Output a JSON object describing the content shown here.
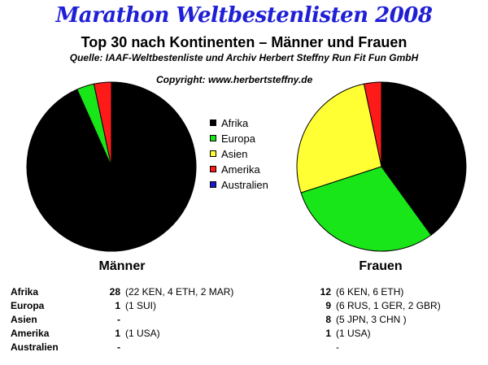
{
  "title": "Marathon Weltbestenlisten 2008",
  "subtitle": "Top 30 nach Kontinenten – Männer und Frauen",
  "source": "Quelle: IAAF-Weltbestenliste und Archiv Herbert Steffny Run Fit Fun GmbH",
  "copyright": "Copyright: www.herbertsteffny.de",
  "colors": {
    "Afrika": "#000000",
    "Europa": "#19e619",
    "Asien": "#ffff33",
    "Amerika": "#ff1a1a",
    "Australien": "#1a1acc"
  },
  "chart_data": [
    {
      "type": "pie",
      "title": "Männer",
      "categories": [
        "Afrika",
        "Europa",
        "Asien",
        "Amerika",
        "Australien"
      ],
      "values": [
        28,
        1,
        0,
        1,
        0
      ],
      "legend": "center"
    },
    {
      "type": "pie",
      "title": "Frauen",
      "categories": [
        "Afrika",
        "Europa",
        "Asien",
        "Amerika",
        "Australien"
      ],
      "values": [
        12,
        9,
        8,
        1,
        0
      ],
      "legend": "center"
    }
  ],
  "table": {
    "rows": [
      {
        "name": "Afrika",
        "m_count": "28",
        "m_detail": "(22 KEN, 4 ETH, 2 MAR)",
        "f_count": "12",
        "f_detail": "(6 KEN, 6 ETH)"
      },
      {
        "name": "Europa",
        "m_count": "1",
        "m_detail": "(1 SUI)",
        "f_count": "9",
        "f_detail": "(6 RUS, 1 GER, 2 GBR)"
      },
      {
        "name": "Asien",
        "m_count": "-",
        "m_detail": "",
        "f_count": "8",
        "f_detail": "(5 JPN, 3 CHN )"
      },
      {
        "name": "Amerika",
        "m_count": "1",
        "m_detail": "(1 USA)",
        "f_count": "1",
        "f_detail": "(1 USA)"
      },
      {
        "name": "Australien",
        "m_count": "-",
        "m_detail": "",
        "f_count": "",
        "f_detail": "-"
      }
    ]
  }
}
